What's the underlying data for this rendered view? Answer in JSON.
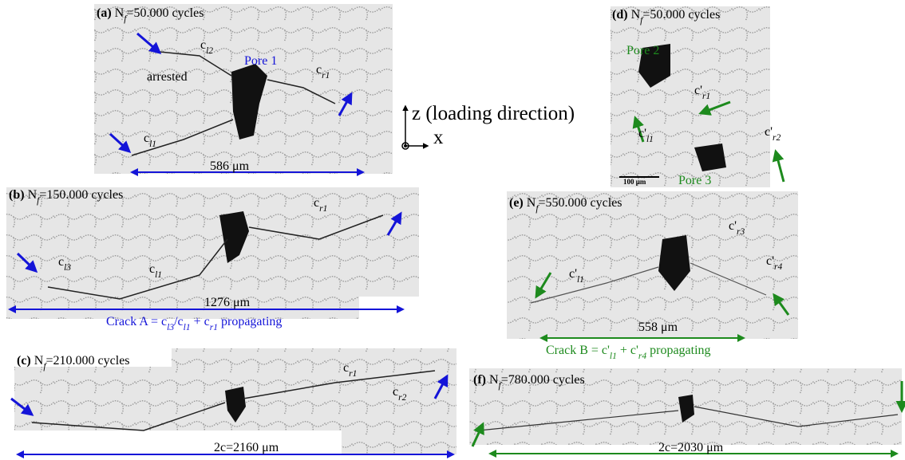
{
  "panels": [
    {
      "label": "(a)",
      "title": [
        "N",
        "f",
        "=50.000 cycles"
      ],
      "annotations": [
        [
          "c",
          "l2"
        ],
        [
          "arrested"
        ],
        [
          "Pore 1"
        ],
        [
          "c",
          "r1"
        ],
        [
          "c",
          "l1"
        ]
      ],
      "scale": [
        "586 μm"
      ]
    },
    {
      "label": "(b)",
      "title": [
        "N",
        "f",
        "=150.000 cycles"
      ],
      "annotations": [
        [
          "c",
          "r1"
        ],
        [
          "c",
          "l3"
        ],
        [
          "c",
          "l1"
        ]
      ],
      "scale": [
        "1276 μm"
      ],
      "caption": [
        "Crack A = c",
        "l3",
        "/c",
        "l1",
        " + c",
        "r1",
        " propagating"
      ]
    },
    {
      "label": "(c)",
      "title": [
        "N",
        "f",
        "=210.000 cycles"
      ],
      "annotations": [
        [
          "c",
          "r1"
        ],
        [
          "c",
          "r2"
        ]
      ],
      "scale": [
        "2c=2160 μm"
      ]
    },
    {
      "label": "(d)",
      "title": [
        "N",
        "f",
        "=50.000 cycles"
      ],
      "annotations": [
        [
          "Pore 2"
        ],
        [
          "c'",
          "r1"
        ],
        [
          "c'",
          "l1"
        ],
        [
          "c'",
          "r2"
        ],
        [
          "Pore 3"
        ]
      ],
      "scale": [
        "100 μm"
      ]
    },
    {
      "label": "(e)",
      "title": [
        "N",
        "f",
        "=550.000 cycles"
      ],
      "annotations": [
        [
          "c'",
          "r3"
        ],
        [
          "c'",
          "r4"
        ],
        [
          "c'",
          "l1"
        ]
      ],
      "scale": [
        "558 μm"
      ],
      "caption": [
        "Crack B = c'",
        "l1",
        " + c'",
        "r4",
        " propagating"
      ]
    },
    {
      "label": "(f)",
      "title": [
        "N",
        "f",
        "=780.000 cycles"
      ],
      "annotations": [],
      "scale": [
        "2c=2030 μm"
      ]
    }
  ],
  "axes": {
    "z": "z (loading direction)",
    "x": "x"
  }
}
